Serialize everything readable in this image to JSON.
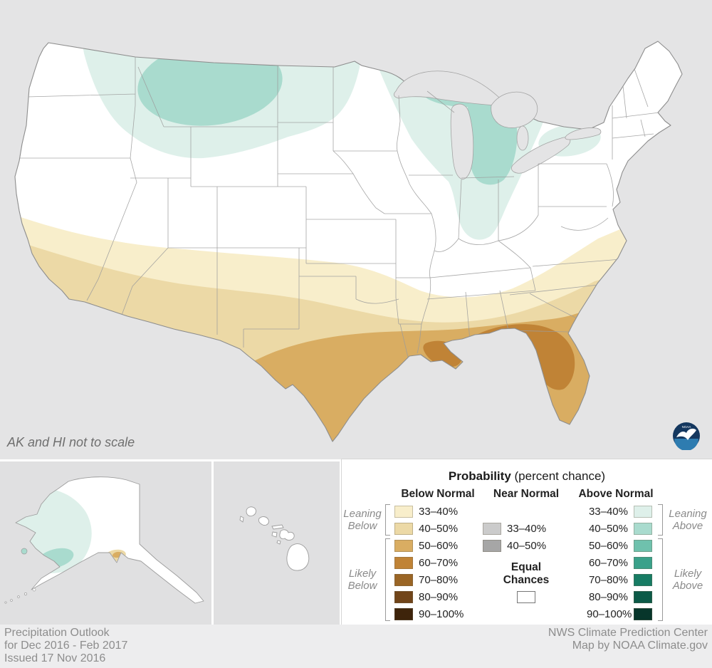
{
  "map": {
    "note": "AK and HI not to scale",
    "region_colors": {
      "below_33_40": "#f8eecb",
      "below_40_50": "#ecd9a6",
      "below_50_60": "#d9ad62",
      "below_60_70": "#c08336",
      "below_70_80": "#9a6525",
      "below_80_90": "#71451a",
      "below_90_100": "#3e240b",
      "near_33_40": "#cbcbcb",
      "near_40_50": "#a6a6a6",
      "above_33_40": "#def0ea",
      "above_40_50": "#a9dbce",
      "above_50_60": "#6fc1ad",
      "above_60_70": "#3aa18a",
      "above_70_80": "#177c64",
      "above_80_90": "#0c5a48",
      "above_90_100": "#07362b",
      "equal_chances": "#ffffff"
    }
  },
  "legend": {
    "title_bold": "Probability",
    "title_rest": " (percent chance)",
    "below": {
      "header": "Below Normal",
      "rows": [
        {
          "label": "33–40%",
          "color_key": "below_33_40"
        },
        {
          "label": "40–50%",
          "color_key": "below_40_50"
        },
        {
          "label": "50–60%",
          "color_key": "below_50_60"
        },
        {
          "label": "60–70%",
          "color_key": "below_60_70"
        },
        {
          "label": "70–80%",
          "color_key": "below_70_80"
        },
        {
          "label": "80–90%",
          "color_key": "below_80_90"
        },
        {
          "label": "90–100%",
          "color_key": "below_90_100"
        }
      ]
    },
    "near": {
      "header": "Near Normal",
      "rows": [
        {
          "label": "33–40%",
          "color_key": "near_33_40"
        },
        {
          "label": "40–50%",
          "color_key": "near_40_50"
        }
      ],
      "equal_label": "Equal Chances"
    },
    "above": {
      "header": "Above Normal",
      "rows": [
        {
          "label": "33–40%",
          "color_key": "above_33_40"
        },
        {
          "label": "40–50%",
          "color_key": "above_40_50"
        },
        {
          "label": "50–60%",
          "color_key": "above_50_60"
        },
        {
          "label": "60–70%",
          "color_key": "above_60_70"
        },
        {
          "label": "70–80%",
          "color_key": "above_70_80"
        },
        {
          "label": "80–90%",
          "color_key": "above_80_90"
        },
        {
          "label": "90–100%",
          "color_key": "above_90_100"
        }
      ]
    },
    "annotations": {
      "leaning_below": "Leaning Below",
      "likely_below": "Likely Below",
      "leaning_above": "Leaning Above",
      "likely_above": "Likely Above"
    }
  },
  "logo": {
    "label": "NOAA"
  },
  "footer": {
    "left_line1": "Precipitation Outlook",
    "left_line2": "for Dec 2016 - Feb 2017",
    "left_line3": "Issued 17 Nov 2016",
    "right_line1": "NWS Climate Prediction Center",
    "right_line2": "Map by NOAA Climate.gov"
  }
}
